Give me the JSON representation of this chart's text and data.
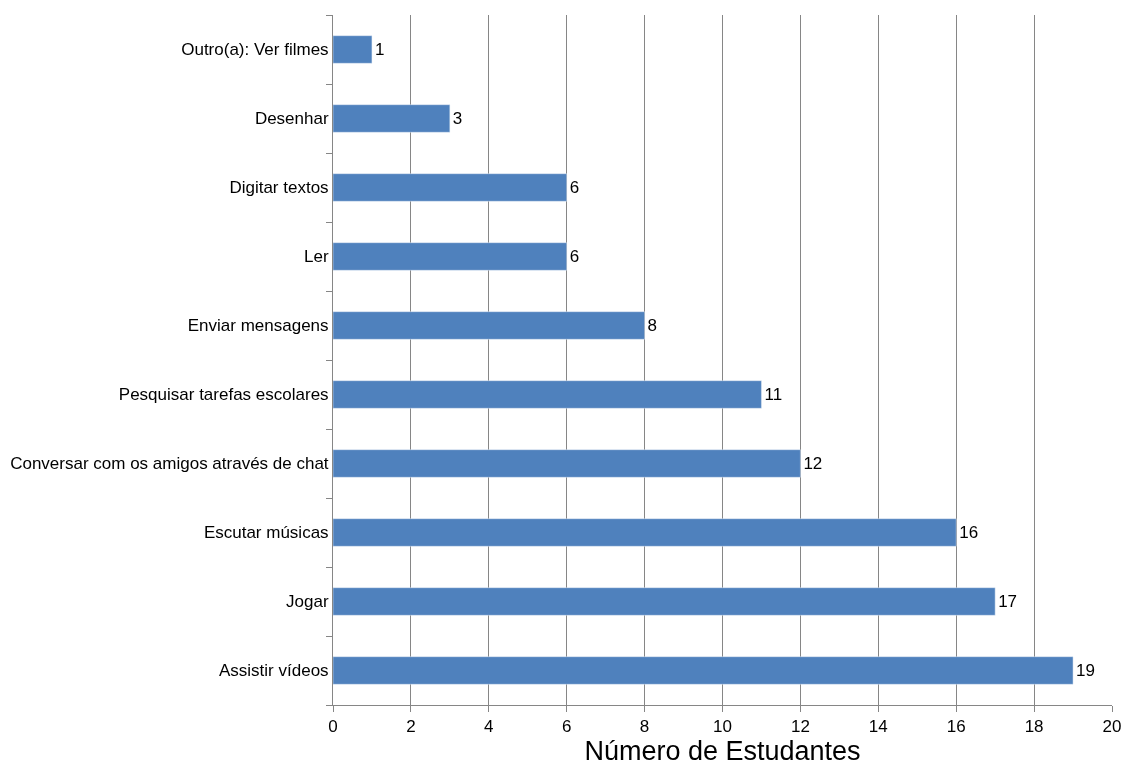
{
  "chart_data": {
    "type": "bar",
    "orientation": "horizontal",
    "xlabel": "Número de Estudantes",
    "categories": [
      "Outro(a): Ver filmes",
      "Desenhar",
      "Digitar textos",
      "Ler",
      "Enviar mensagens",
      "Pesquisar tarefas escolares",
      "Conversar com os amigos através de chat",
      "Escutar músicas",
      "Jogar",
      "Assistir vídeos"
    ],
    "values": [
      1,
      3,
      6,
      6,
      8,
      11,
      12,
      16,
      17,
      19
    ],
    "color": "#4f81bd",
    "xlim": [
      0,
      20
    ],
    "xticks": [
      0,
      2,
      4,
      6,
      8,
      10,
      12,
      14,
      16,
      18,
      20
    ],
    "grid": "x",
    "legend": false,
    "data_labels": true
  }
}
